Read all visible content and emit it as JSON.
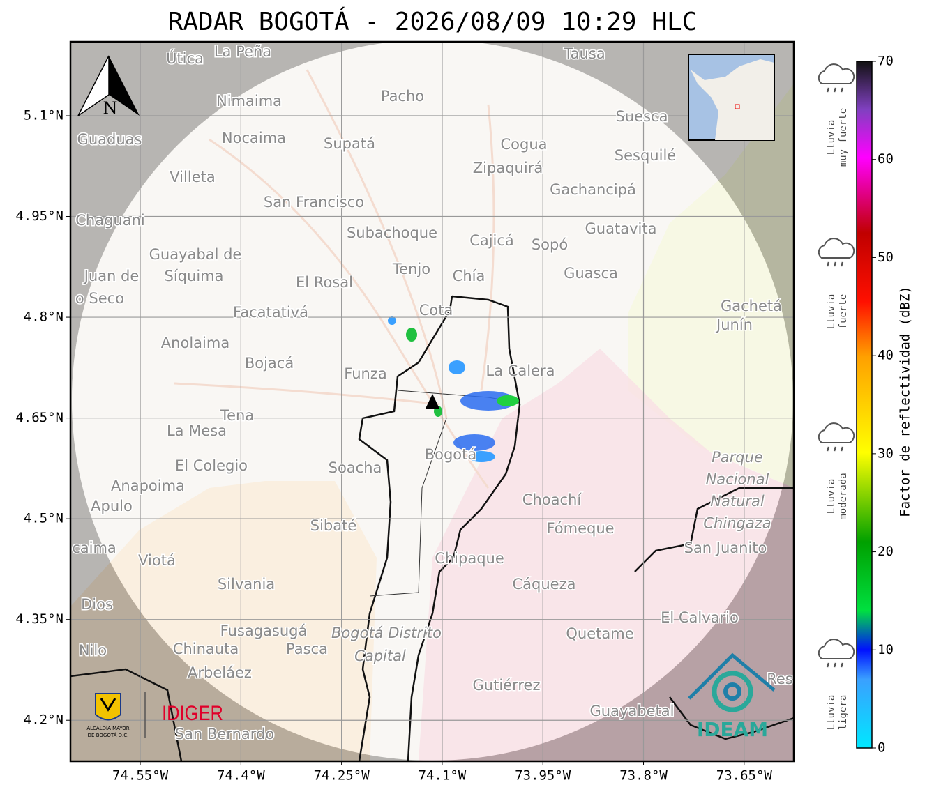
{
  "title": "RADAR BOGOTÁ - 2026/08/09 10:29 HLC",
  "map": {
    "xlim": [
      -74.654,
      -73.576
    ],
    "ylim": [
      4.139,
      5.21
    ],
    "xticks": [
      {
        "value": -74.55,
        "label": "74.55°W"
      },
      {
        "value": -74.4,
        "label": "74.4°W"
      },
      {
        "value": -74.25,
        "label": "74.25°W"
      },
      {
        "value": -74.1,
        "label": "74.1°W"
      },
      {
        "value": -73.95,
        "label": "73.95°W"
      },
      {
        "value": -73.8,
        "label": "73.8°W"
      },
      {
        "value": -73.65,
        "label": "73.65°W"
      }
    ],
    "yticks": [
      {
        "value": 5.1,
        "label": "5.1°N"
      },
      {
        "value": 4.95,
        "label": "4.95°N"
      },
      {
        "value": 4.8,
        "label": "4.8°N"
      },
      {
        "value": 4.65,
        "label": "4.65°N"
      },
      {
        "value": 4.5,
        "label": "4.5°N"
      },
      {
        "value": 4.35,
        "label": "4.35°N"
      },
      {
        "value": 4.2,
        "label": "4.2°N"
      }
    ],
    "grid": true,
    "north": "N",
    "places": [
      "La Peña",
      "Útica",
      "Tausa",
      "Pacho",
      "Nimaima",
      "Suesca",
      "Guaduas",
      "Nocaima",
      "Supatá",
      "Cogua",
      "Sesquilé",
      "Zipaquirá",
      "Villeta",
      "Gachancipá",
      "San Francisco",
      "Chaguani",
      "Guatavita",
      "Subachoque",
      "Cajicá",
      "Sopó",
      "Guayabal de",
      "Síquima",
      "Juan de",
      "Tenjo",
      "Guasca",
      "Chía",
      "El Rosal",
      "o Seco",
      "Gachetá",
      "Junín",
      "Facatativá",
      "Cota",
      "Anolaima",
      "Bojacá",
      "La Calera",
      "Funza",
      "Tena",
      "La Mesa",
      "El Colegio",
      "Soacha",
      "Bogotá",
      "Anapoima",
      "Apulo",
      "Choachí",
      "Sibaté",
      "Fómeque",
      "San Juanito",
      "caima",
      "Viotá",
      "Chipaque",
      "Silvania",
      "Cáqueza",
      "Dios",
      "El Calvario",
      "Fusagasugá",
      "Quetame",
      "Nilo",
      "Chinauta",
      "Pasca",
      "Arbeláez",
      "Gutiérrez",
      "Res",
      "Guayabetal",
      "San Bernardo"
    ],
    "park": [
      "Parque",
      "Nacional",
      "Natural",
      "Chingaza"
    ],
    "district": [
      "Bogotá Distrito",
      "Capital"
    ]
  },
  "colorbar": {
    "label": "Factor de reflectividad (dBZ)",
    "lim": [
      0,
      70
    ],
    "ticks": [
      0,
      10,
      20,
      30,
      40,
      50,
      60,
      70
    ]
  },
  "rain": [
    [
      "Lluvia",
      "muy fuerte"
    ],
    [
      "Lluvia",
      "fuerte"
    ],
    [
      "Lluvia",
      "moderada"
    ],
    [
      "Lluvia",
      "ligera"
    ]
  ],
  "logos": {
    "alcaldia": [
      "ALCALDÍA MAYOR",
      "DE BOGOTÁ D.C."
    ],
    "idiger": "IDIGER",
    "ideam": "IDEAM"
  }
}
